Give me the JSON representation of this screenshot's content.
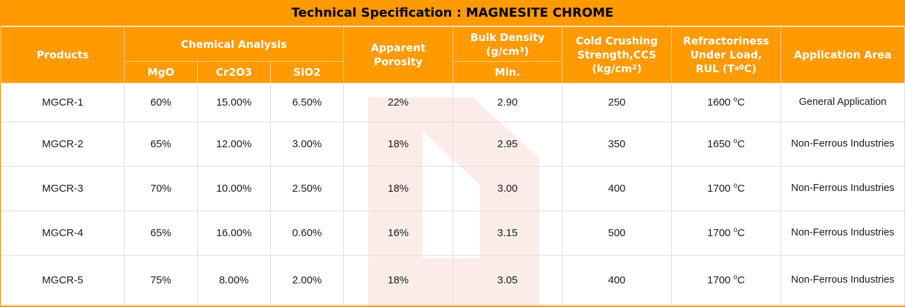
{
  "title": "Technical Specification : MAGNESITE CHROME",
  "headers": {
    "products": "Products",
    "chemical_analysis": "Chemical Analysis",
    "mgo": "MgO",
    "cr2o3": "Cr2O3",
    "sio2": "SiO2",
    "apparent_porosity": "Apparent Porosity",
    "bulk_density": "Bulk Density",
    "bulk_density_unit_pre": "(g/cm",
    "bulk_density_unit_sup": "3",
    "bulk_density_unit_post": ")",
    "bulk_density_sub": "Min.",
    "ccs_line1": "Cold Crushing Strength,CCS",
    "ccs_unit_pre": "(kg/cm",
    "ccs_unit_sup": "2",
    "ccs_unit_post": ")",
    "rul_line1": "Refractoriness Under Load,",
    "rul_pre": "RUL (T",
    "rul_sub": "a",
    "rul_sup": "0",
    "rul_post": "C)",
    "application_area": "Application Area"
  },
  "degree_symbol": "o",
  "degree_unit": "C",
  "rows": [
    {
      "product": "MGCR-1",
      "mgo": "60%",
      "cr2o3": "15.00%",
      "sio2": "6.50%",
      "porosity": "22%",
      "density": "2.90",
      "ccs": "250",
      "rul": "1600",
      "application": "General Application"
    },
    {
      "product": "MGCR-2",
      "mgo": "65%",
      "cr2o3": "12.00%",
      "sio2": "3.00%",
      "porosity": "18%",
      "density": "2.95",
      "ccs": "350",
      "rul": "1650",
      "application": "Non-Ferrous Industries"
    },
    {
      "product": "MGCR-3",
      "mgo": "70%",
      "cr2o3": "10.00%",
      "sio2": "2.50%",
      "porosity": "18%",
      "density": "3.00",
      "ccs": "400",
      "rul": "1700",
      "application": "Non-Ferrous Industries"
    },
    {
      "product": "MGCR-4",
      "mgo": "65%",
      "cr2o3": "16.00%",
      "sio2": "0.60%",
      "porosity": "16%",
      "density": "3.15",
      "ccs": "500",
      "rul": "1700",
      "application": "Non-Ferrous Industries"
    },
    {
      "product": "MGCR-5",
      "mgo": "75%",
      "cr2o3": "8.00%",
      "sio2": "2.00%",
      "porosity": "18%",
      "density": "3.05",
      "ccs": "400",
      "rul": "1700",
      "application": "Non-Ferrous Industries"
    }
  ],
  "colors": {
    "header_bg": "#ff9a00",
    "header_text": "#ffffff",
    "title_text": "#000000",
    "watermark": "#f6d4cc"
  }
}
